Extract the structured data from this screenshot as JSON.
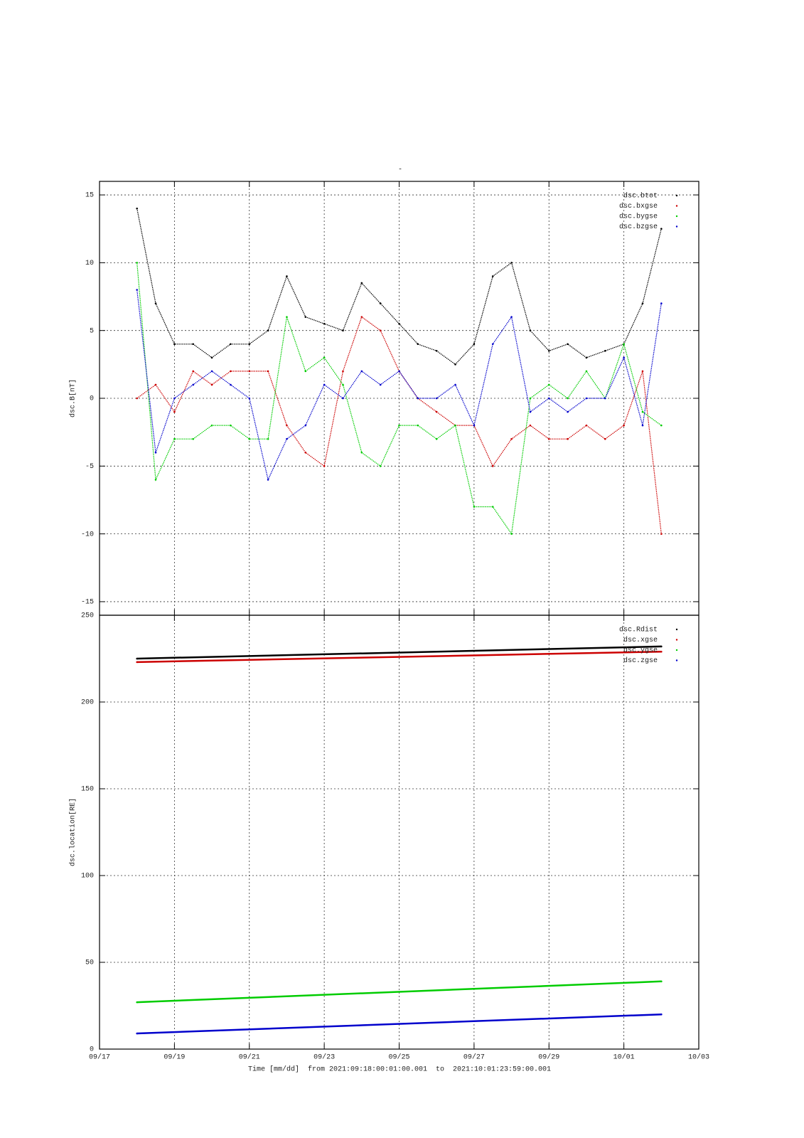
{
  "chart_data": [
    {
      "type": "line",
      "title": "-",
      "ylabel": "dsc.B[nT]",
      "legend": "top right",
      "ylim": [
        -16,
        16
      ],
      "yticks": [
        -15,
        -10,
        -5,
        0,
        5,
        10,
        15
      ],
      "grid": true,
      "x": [
        1,
        1.5,
        2,
        2.5,
        3,
        3.5,
        4,
        4.5,
        5,
        5.5,
        6,
        6.5,
        7,
        7.5,
        8,
        8.5,
        9,
        9.5,
        10,
        10.5,
        11,
        11.5,
        12,
        12.5,
        13,
        13.5,
        14,
        14.5,
        15
      ],
      "series": [
        {
          "name": "dsc.btot",
          "color": "#000000",
          "values": [
            14,
            7,
            4,
            4,
            3,
            4,
            4,
            5,
            9,
            6,
            5.5,
            5,
            8.5,
            7,
            5.5,
            4,
            3.5,
            2.5,
            4,
            9,
            10,
            5,
            3.5,
            4,
            3,
            3.5,
            4,
            7,
            12.5
          ]
        },
        {
          "name": "dsc.bxgse",
          "color": "#cc0000",
          "values": [
            0,
            1,
            -1,
            2,
            1,
            2,
            2,
            2,
            -2,
            -4,
            -5,
            2,
            6,
            5,
            2,
            0,
            -1,
            -2,
            -2,
            -5,
            -3,
            -2,
            -3,
            -3,
            -2,
            -3,
            -2,
            2,
            -10
          ]
        },
        {
          "name": "dsc.bygse",
          "color": "#00cc00",
          "values": [
            10,
            -6,
            -3,
            -3,
            -2,
            -2,
            -3,
            -3,
            6,
            2,
            3,
            1,
            -4,
            -5,
            -2,
            -2,
            -3,
            -2,
            -8,
            -8,
            -10,
            0,
            1,
            0,
            2,
            0,
            4,
            -1,
            -2
          ]
        },
        {
          "name": "dsc.bzgse",
          "color": "#0000cc",
          "values": [
            8,
            -4,
            0,
            1,
            2,
            1,
            0,
            -6,
            -3,
            -2,
            1,
            0,
            2,
            1,
            2,
            0,
            0,
            1,
            -2,
            4,
            6,
            -1,
            0,
            -1,
            0,
            0,
            3,
            -2,
            7
          ]
        }
      ]
    },
    {
      "type": "line",
      "ylabel": "dsc.location[RE]",
      "legend": "top right",
      "xlabel": "Time [mm/dd]  from 2021:09:18:00:01:00.001  to  2021:10:01:23:59:00.001",
      "xlim": [
        0,
        16
      ],
      "xticks": [
        {
          "value": 0,
          "label": "09/17"
        },
        {
          "value": 2,
          "label": "09/19"
        },
        {
          "value": 4,
          "label": "09/21"
        },
        {
          "value": 6,
          "label": "09/23"
        },
        {
          "value": 8,
          "label": "09/25"
        },
        {
          "value": 10,
          "label": "09/27"
        },
        {
          "value": 12,
          "label": "09/29"
        },
        {
          "value": 14,
          "label": "10/01"
        },
        {
          "value": 16,
          "label": "10/03"
        }
      ],
      "ylim": [
        0,
        250
      ],
      "yticks": [
        0,
        50,
        100,
        150,
        200,
        250
      ],
      "grid": true,
      "x": [
        1,
        15
      ],
      "series": [
        {
          "name": "dsc.Rdist",
          "color": "#000000",
          "values": [
            225,
            232
          ]
        },
        {
          "name": "dsc.xgse",
          "color": "#cc0000",
          "values": [
            223,
            229
          ]
        },
        {
          "name": "dsc.ygse",
          "color": "#00cc00",
          "values": [
            27,
            39
          ]
        },
        {
          "name": "dsc.zgse",
          "color": "#0000cc",
          "values": [
            9,
            20
          ]
        }
      ]
    }
  ]
}
